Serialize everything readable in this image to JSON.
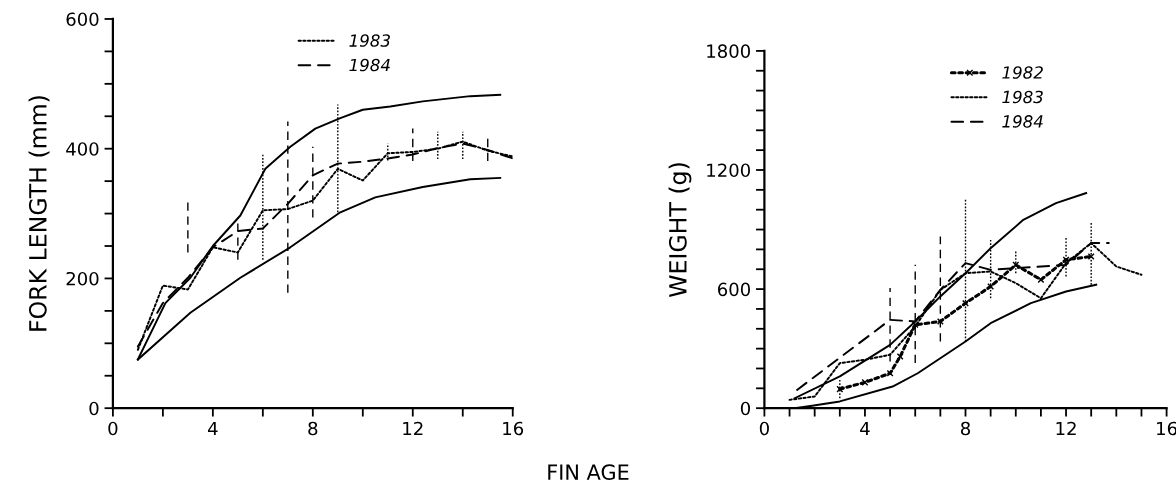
{
  "chart_data": [
    {
      "type": "line",
      "xlabel": "FIN AGE",
      "ylabel": "FORK LENGTH (mm)",
      "xlim": [
        0,
        16
      ],
      "ylim": [
        0,
        600
      ],
      "xticks": [
        0,
        {
          "value": 2,
          "label": null
        },
        4,
        {
          "value": 6,
          "label": null
        },
        8,
        {
          "value": 10,
          "label": null
        },
        12,
        {
          "value": 14,
          "label": null
        },
        16
      ],
      "yticks": [
        0,
        {
          "value": 50,
          "label": null
        },
        {
          "value": 100,
          "label": null
        },
        {
          "value": 150,
          "label": null
        },
        200,
        {
          "value": 250,
          "label": null
        },
        {
          "value": 300,
          "label": null
        },
        {
          "value": 350,
          "label": null
        },
        400,
        {
          "value": 450,
          "label": null
        },
        {
          "value": 500,
          "label": null
        },
        {
          "value": 550,
          "label": null
        },
        600
      ],
      "grid": false,
      "legend": "top",
      "marker": "none",
      "series": [
        {
          "color": "#000000",
          "line_style": "solid",
          "x": [
            1,
            2.1,
            3.1,
            4,
            5.1,
            6.1,
            7.1,
            8.1,
            9.1,
            10,
            11.1,
            12.4,
            14.3,
            15.5
          ],
          "values": [
            75,
            162,
            201,
            250,
            297,
            369,
            403,
            431,
            447,
            460,
            465,
            473,
            481,
            483
          ]
        },
        {
          "color": "#000000",
          "line_style": "solid",
          "x": [
            1,
            3.1,
            5.1,
            7.1,
            9.1,
            10.5,
            12.4,
            14.3,
            15.5
          ],
          "values": [
            75,
            147,
            201,
            248,
            302,
            325,
            341,
            353,
            355
          ]
        },
        {
          "name": "1983",
          "color": "#000000",
          "line_style": "dotted",
          "x": [
            1,
            2,
            3,
            4,
            5,
            6,
            7,
            8,
            9,
            10,
            11,
            12,
            13,
            14,
            15,
            16
          ],
          "values": [
            90,
            189,
            183,
            248,
            240,
            305,
            307,
            320,
            369,
            351,
            393,
            395,
            400,
            411,
            397,
            388
          ],
          "errors": [
            null,
            null,
            null,
            null,
            null,
            [
              229,
              393
            ],
            null,
            null,
            [
              302,
              468
            ],
            null,
            [
              382,
              408
            ],
            null,
            [
              384,
              426
            ],
            [
              384,
              426
            ],
            null,
            null
          ]
        },
        {
          "name": "1984",
          "color": "#000000",
          "line_style": "dashed",
          "x": [
            1,
            2,
            3,
            4,
            5,
            6,
            7,
            8,
            9,
            10,
            11,
            12,
            13,
            14,
            15,
            16
          ],
          "values": [
            95,
            162,
            201,
            248,
            273,
            277,
            315,
            359,
            377,
            380,
            385,
            391,
            401,
            408,
            398,
            385
          ],
          "errors": [
            null,
            null,
            [
              240,
              320
            ],
            null,
            [
              229,
              292
            ],
            null,
            [
              178,
              442
            ],
            [
              294,
              403
            ],
            null,
            null,
            null,
            [
              381,
              431
            ],
            null,
            null,
            [
              381,
              418
            ],
            null
          ]
        }
      ]
    },
    {
      "type": "line",
      "ylabel": "WEIGHT (g)",
      "xlim": [
        0,
        16
      ],
      "ylim": [
        0,
        1800
      ],
      "xticks": [
        0,
        {
          "value": 1,
          "label": null
        },
        {
          "value": 2,
          "label": null
        },
        {
          "value": 3,
          "label": null
        },
        4,
        {
          "value": 5,
          "label": null
        },
        {
          "value": 6,
          "label": null
        },
        {
          "value": 7,
          "label": null
        },
        8,
        {
          "value": 9,
          "label": null
        },
        {
          "value": 10,
          "label": null
        },
        {
          "value": 11,
          "label": null
        },
        12,
        {
          "value": 13,
          "label": null
        },
        {
          "value": 14,
          "label": null
        },
        {
          "value": 15,
          "label": null
        },
        16
      ],
      "yticks": [
        0,
        {
          "value": 100,
          "label": null
        },
        {
          "value": 200,
          "label": null
        },
        {
          "value": 300,
          "label": null
        },
        {
          "value": 400,
          "label": null
        },
        {
          "value": 500,
          "label": null
        },
        600,
        {
          "value": 700,
          "label": null
        },
        {
          "value": 800,
          "label": null
        },
        {
          "value": 900,
          "label": null
        },
        {
          "value": 1000,
          "label": null
        },
        {
          "value": 1100,
          "label": null
        },
        1200,
        {
          "value": 1300,
          "label": null
        },
        {
          "value": 1400,
          "label": null
        },
        {
          "value": 1500,
          "label": null
        },
        {
          "value": 1600,
          "label": null
        },
        {
          "value": 1700,
          "label": null
        },
        1800
      ],
      "grid": false,
      "legend": "top",
      "marker": "none",
      "series": [
        {
          "color": "#000000",
          "line_style": "solid",
          "x": [
            1.2,
            3,
            5,
            6,
            7,
            8,
            9,
            10.3,
            11.6,
            12.8
          ],
          "values": [
            50,
            160,
            319,
            437,
            563,
            680,
            806,
            949,
            1033,
            1084
          ]
        },
        {
          "color": "#000000",
          "line_style": "solid",
          "x": [
            1.2,
            1.9,
            3,
            5.1,
            6.1,
            8,
            9,
            10.6,
            12,
            13.2
          ],
          "values": [
            0,
            12,
            34,
            109,
            176,
            336,
            428,
            529,
            588,
            622
          ]
        },
        {
          "name": "1982",
          "color": "#000000",
          "line_style": "dotted",
          "marker": "cross",
          "x": [
            3,
            4,
            5,
            5.4,
            6,
            7,
            8,
            9,
            10,
            11,
            12,
            13
          ],
          "values": [
            96,
            130,
            176,
            260,
            420,
            437,
            529,
            613,
            722,
            647,
            748,
            764
          ],
          "errors": [
            [
              50,
              143
            ],
            null,
            null,
            null,
            null,
            null,
            null,
            null,
            [
              680,
              798
            ],
            null,
            null,
            null
          ]
        },
        {
          "name": "1983",
          "color": "#000000",
          "line_style": "dotted",
          "x": [
            1,
            2,
            3,
            4,
            5,
            6,
            7,
            8,
            9,
            10,
            11,
            12,
            13,
            14,
            15
          ],
          "values": [
            42,
            59,
            227,
            244,
            269,
            412,
            596,
            680,
            689,
            630,
            554,
            731,
            832,
            714,
            672
          ],
          "errors": [
            null,
            null,
            null,
            null,
            null,
            null,
            null,
            [
              336,
              1050
            ],
            [
              554,
              848
            ],
            null,
            null,
            [
              664,
              857
            ],
            [
              622,
              941
            ],
            null,
            null
          ]
        },
        {
          "name": "1984",
          "color": "#000000",
          "line_style": "dashed",
          "x": [
            1.3,
            5,
            6,
            7,
            8,
            9,
            10,
            12,
            13,
            13.7
          ],
          "values": [
            92,
            445,
            437,
            596,
            731,
            697,
            706,
            722,
            832,
            832
          ],
          "errors": [
            null,
            [
              235,
              605
            ],
            [
              227,
              722
            ],
            [
              336,
              865
            ],
            null,
            null,
            null,
            null,
            null,
            null
          ]
        }
      ]
    }
  ]
}
